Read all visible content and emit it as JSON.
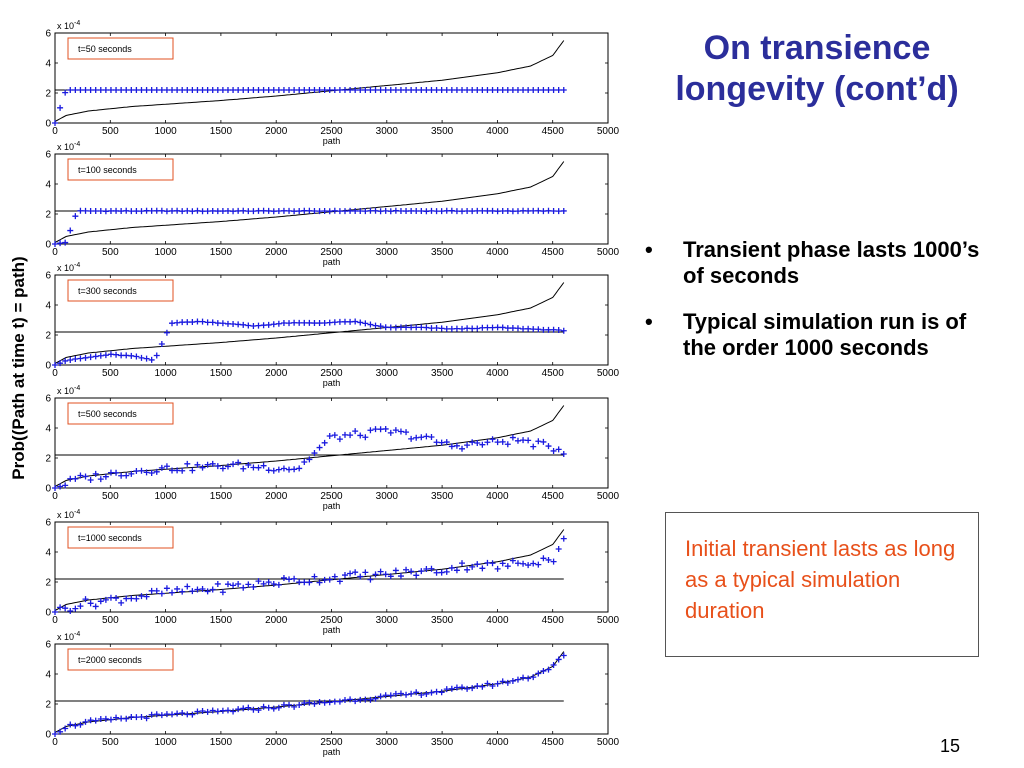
{
  "slide": {
    "title": "On transience longevity (cont’d)",
    "bullets": [
      "Transient phase lasts 1000’s of seconds",
      "Typical simulation run is of the order 1000 seconds"
    ],
    "callout": "Initial transient lasts as long as a typical simulation duration",
    "page_number": "15",
    "colors": {
      "title": "#2b2e9b",
      "callout_text": "#e8501a",
      "markers": "#1a1adf",
      "legend_border": "#e05020"
    }
  },
  "chart_data": [
    {
      "type": "scatter",
      "title": "t=50 seconds",
      "xlabel": "path",
      "ylabel": "Prob((Path at time t) = path)",
      "y_multiplier": "x 10^-4",
      "xlim": [
        0,
        5000
      ],
      "ylim": [
        0,
        6
      ],
      "xticks": [
        "0",
        "500",
        "1000",
        "1500",
        "2000",
        "2500",
        "3000",
        "3500",
        "4000",
        "4500",
        "5000"
      ],
      "yticks": [
        "0",
        "2",
        "4",
        "6"
      ],
      "reference_line": 2.2,
      "sorted_curve": [
        [
          0,
          0.1
        ],
        [
          100,
          0.5
        ],
        [
          300,
          0.8
        ],
        [
          700,
          1.1
        ],
        [
          1000,
          1.25
        ],
        [
          1500,
          1.5
        ],
        [
          2000,
          1.8
        ],
        [
          2500,
          2.15
        ],
        [
          3000,
          2.5
        ],
        [
          3500,
          2.85
        ],
        [
          4000,
          3.35
        ],
        [
          4300,
          3.8
        ],
        [
          4500,
          4.5
        ],
        [
          4600,
          5.5
        ]
      ],
      "markers": [
        [
          0,
          0
        ],
        [
          100,
          2.2
        ],
        [
          300,
          2.2
        ],
        [
          600,
          2.2
        ],
        [
          1000,
          2.2
        ],
        [
          1500,
          2.2
        ],
        [
          2000,
          2.2
        ],
        [
          2500,
          2.2
        ],
        [
          3000,
          2.2
        ],
        [
          3500,
          2.2
        ],
        [
          4000,
          2.2
        ],
        [
          4600,
          2.2
        ]
      ]
    },
    {
      "type": "scatter",
      "title": "t=100 seconds",
      "xlabel": "path",
      "ylabel": "Prob((Path at time t) = path)",
      "y_multiplier": "x 10^-4",
      "xlim": [
        0,
        5000
      ],
      "ylim": [
        0,
        6
      ],
      "xticks": [
        "0",
        "500",
        "1000",
        "1500",
        "2000",
        "2500",
        "3000",
        "3500",
        "4000",
        "4500",
        "5000"
      ],
      "yticks": [
        "0",
        "2",
        "4",
        "6"
      ],
      "reference_line": 2.2,
      "sorted_curve": [
        [
          0,
          0.1
        ],
        [
          100,
          0.5
        ],
        [
          300,
          0.8
        ],
        [
          700,
          1.1
        ],
        [
          1000,
          1.25
        ],
        [
          1500,
          1.5
        ],
        [
          2000,
          1.8
        ],
        [
          2500,
          2.15
        ],
        [
          3000,
          2.5
        ],
        [
          3500,
          2.85
        ],
        [
          4000,
          3.35
        ],
        [
          4300,
          3.8
        ],
        [
          4500,
          4.5
        ],
        [
          4600,
          5.5
        ]
      ],
      "markers": [
        [
          0,
          0
        ],
        [
          100,
          0.1
        ],
        [
          200,
          2.2
        ],
        [
          500,
          2.2
        ],
        [
          1000,
          2.2
        ],
        [
          1500,
          2.2
        ],
        [
          2000,
          2.2
        ],
        [
          2500,
          2.2
        ],
        [
          3000,
          2.2
        ],
        [
          3500,
          2.2
        ],
        [
          4000,
          2.2
        ],
        [
          4600,
          2.2
        ]
      ]
    },
    {
      "type": "scatter",
      "title": "t=300 seconds",
      "xlabel": "path",
      "ylabel": "Prob((Path at time t) = path)",
      "y_multiplier": "x 10^-4",
      "xlim": [
        0,
        5000
      ],
      "ylim": [
        0,
        6
      ],
      "xticks": [
        "0",
        "500",
        "1000",
        "1500",
        "2000",
        "2500",
        "3000",
        "3500",
        "4000",
        "4500",
        "5000"
      ],
      "yticks": [
        "0",
        "2",
        "4",
        "6"
      ],
      "reference_line": 2.2,
      "sorted_curve": [
        [
          0,
          0.1
        ],
        [
          100,
          0.5
        ],
        [
          300,
          0.8
        ],
        [
          700,
          1.1
        ],
        [
          1000,
          1.25
        ],
        [
          1500,
          1.5
        ],
        [
          2000,
          1.8
        ],
        [
          2500,
          2.15
        ],
        [
          3000,
          2.5
        ],
        [
          3500,
          2.85
        ],
        [
          4000,
          3.35
        ],
        [
          4300,
          3.8
        ],
        [
          4500,
          4.5
        ],
        [
          4600,
          5.5
        ]
      ],
      "markers": [
        [
          0,
          0
        ],
        [
          100,
          0.3
        ],
        [
          300,
          0.5
        ],
        [
          500,
          0.7
        ],
        [
          700,
          0.6
        ],
        [
          900,
          0.3
        ],
        [
          1050,
          2.8
        ],
        [
          1300,
          2.9
        ],
        [
          1500,
          2.8
        ],
        [
          1800,
          2.6
        ],
        [
          2100,
          2.8
        ],
        [
          2400,
          2.8
        ],
        [
          2700,
          2.9
        ],
        [
          3000,
          2.5
        ],
        [
          3300,
          2.5
        ],
        [
          3600,
          2.4
        ],
        [
          4000,
          2.5
        ],
        [
          4300,
          2.4
        ],
        [
          4600,
          2.3
        ]
      ]
    },
    {
      "type": "scatter",
      "title": "t=500 seconds",
      "xlabel": "path",
      "ylabel": "Prob((Path at time t) = path)",
      "y_multiplier": "x 10^-4",
      "xlim": [
        0,
        5000
      ],
      "ylim": [
        0,
        6
      ],
      "xticks": [
        "0",
        "500",
        "1000",
        "1500",
        "2000",
        "2500",
        "3000",
        "3500",
        "4000",
        "4500",
        "5000"
      ],
      "yticks": [
        "0",
        "2",
        "4",
        "6"
      ],
      "reference_line": 2.2,
      "sorted_curve": [
        [
          0,
          0.1
        ],
        [
          100,
          0.5
        ],
        [
          300,
          0.8
        ],
        [
          700,
          1.1
        ],
        [
          1000,
          1.25
        ],
        [
          1500,
          1.5
        ],
        [
          2000,
          1.8
        ],
        [
          2500,
          2.15
        ],
        [
          3000,
          2.5
        ],
        [
          3500,
          2.85
        ],
        [
          4000,
          3.35
        ],
        [
          4300,
          3.8
        ],
        [
          4500,
          4.5
        ],
        [
          4600,
          5.5
        ]
      ],
      "markers": [
        [
          0,
          0
        ],
        [
          200,
          0.6
        ],
        [
          500,
          0.9
        ],
        [
          800,
          1.2
        ],
        [
          1000,
          1.3
        ],
        [
          1300,
          1.4
        ],
        [
          1600,
          1.5
        ],
        [
          1900,
          1.4
        ],
        [
          2200,
          1.3
        ],
        [
          2500,
          3.4
        ],
        [
          2800,
          3.6
        ],
        [
          3000,
          3.8
        ],
        [
          3300,
          3.4
        ],
        [
          3600,
          2.8
        ],
        [
          3900,
          3.0
        ],
        [
          4200,
          3.2
        ],
        [
          4600,
          2.5
        ]
      ]
    },
    {
      "type": "scatter",
      "title": "t=1000 seconds",
      "xlabel": "path",
      "ylabel": "Prob((Path at time t) = path)",
      "y_multiplier": "x 10^-4",
      "xlim": [
        0,
        5000
      ],
      "ylim": [
        0,
        6
      ],
      "xticks": [
        "0",
        "500",
        "1000",
        "1500",
        "2000",
        "2500",
        "3000",
        "3500",
        "4000",
        "4500",
        "5000"
      ],
      "yticks": [
        "0",
        "2",
        "4",
        "6"
      ],
      "reference_line": 2.2,
      "sorted_curve": [
        [
          0,
          0.1
        ],
        [
          100,
          0.5
        ],
        [
          300,
          0.8
        ],
        [
          700,
          1.1
        ],
        [
          1000,
          1.25
        ],
        [
          1500,
          1.5
        ],
        [
          2000,
          1.8
        ],
        [
          2500,
          2.15
        ],
        [
          3000,
          2.5
        ],
        [
          3500,
          2.85
        ],
        [
          4000,
          3.35
        ],
        [
          4300,
          3.8
        ],
        [
          4500,
          4.5
        ],
        [
          4600,
          5.5
        ]
      ],
      "markers": [
        [
          0,
          0
        ],
        [
          200,
          0.5
        ],
        [
          500,
          0.8
        ],
        [
          800,
          1.1
        ],
        [
          1000,
          1.3
        ],
        [
          1500,
          1.6
        ],
        [
          2000,
          2.0
        ],
        [
          2500,
          2.3
        ],
        [
          3000,
          2.5
        ],
        [
          3500,
          2.8
        ],
        [
          3800,
          3.2
        ],
        [
          4000,
          3.0
        ],
        [
          4300,
          3.4
        ],
        [
          4500,
          3.5
        ],
        [
          4600,
          4.7
        ]
      ]
    },
    {
      "type": "scatter",
      "title": "t=2000 seconds",
      "xlabel": "path",
      "ylabel": "Prob((Path at time t) = path)",
      "y_multiplier": "x 10^-4",
      "xlim": [
        0,
        5000
      ],
      "ylim": [
        0,
        6
      ],
      "xticks": [
        "0",
        "500",
        "1000",
        "1500",
        "2000",
        "2500",
        "3000",
        "3500",
        "4000",
        "4500",
        "5000"
      ],
      "yticks": [
        "0",
        "2",
        "4",
        "6"
      ],
      "reference_line": 2.2,
      "sorted_curve": [
        [
          0,
          0.1
        ],
        [
          100,
          0.5
        ],
        [
          300,
          0.8
        ],
        [
          700,
          1.1
        ],
        [
          1000,
          1.25
        ],
        [
          1500,
          1.5
        ],
        [
          2000,
          1.8
        ],
        [
          2500,
          2.15
        ],
        [
          3000,
          2.5
        ],
        [
          3500,
          2.85
        ],
        [
          4000,
          3.35
        ],
        [
          4300,
          3.8
        ],
        [
          4500,
          4.5
        ],
        [
          4600,
          5.5
        ]
      ],
      "markers": [
        [
          0,
          0
        ],
        [
          100,
          0.5
        ],
        [
          300,
          0.8
        ],
        [
          700,
          1.1
        ],
        [
          1000,
          1.25
        ],
        [
          1500,
          1.5
        ],
        [
          2000,
          1.8
        ],
        [
          2500,
          2.15
        ],
        [
          3000,
          2.5
        ],
        [
          3500,
          2.85
        ],
        [
          4000,
          3.35
        ],
        [
          4300,
          3.8
        ],
        [
          4500,
          4.5
        ],
        [
          4600,
          5.2
        ]
      ]
    }
  ]
}
